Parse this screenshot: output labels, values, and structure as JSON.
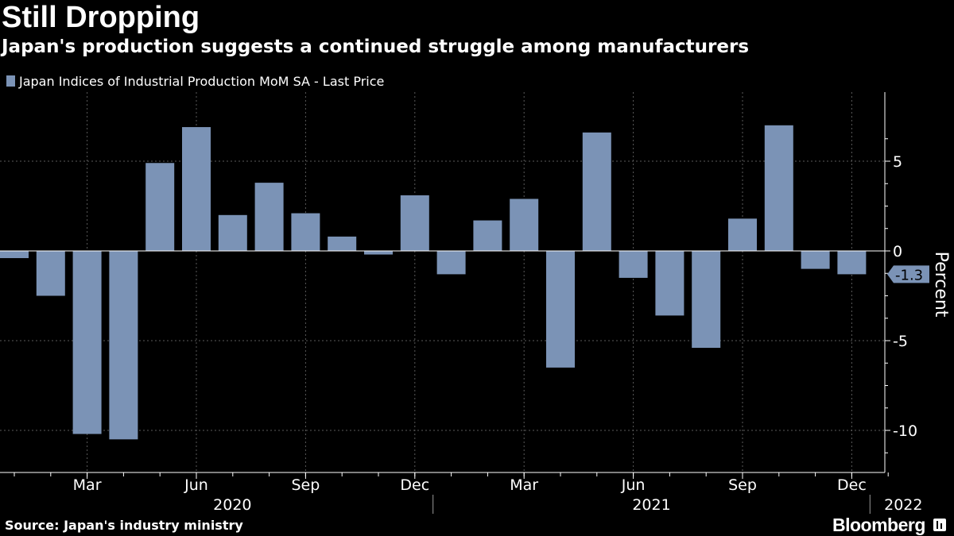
{
  "header": {
    "title": "Still Dropping",
    "subtitle": "Japan's production suggests a continued struggle among manufacturers"
  },
  "footer": {
    "source": "Source: Japan's industry ministry",
    "brand": "Bloomberg"
  },
  "colors": {
    "background": "#000000",
    "bar": "#7b93b6",
    "text": "#ffffff",
    "grid": "#5a5a5a",
    "axis": "#ffffff"
  },
  "chart_data": {
    "type": "bar",
    "title": "Still Dropping",
    "subtitle": "Japan's production suggests a continued struggle among manufacturers",
    "ylabel": "Percent",
    "xlabel": "",
    "ylim": [
      -12,
      8.5
    ],
    "yticks": [
      5,
      0,
      -5,
      -10
    ],
    "ytick_labels": [
      "5",
      "0",
      "-5",
      "-10"
    ],
    "y_axis_position": "right",
    "grid": true,
    "legend_position": "top-left",
    "series": [
      {
        "name": "Japan Indices of Industrial Production MoM SA - Last Price",
        "color": "#7b93b6",
        "categories": [
          "2020-01",
          "2020-02",
          "2020-03",
          "2020-04",
          "2020-05",
          "2020-06",
          "2020-07",
          "2020-08",
          "2020-09",
          "2020-10",
          "2020-11",
          "2020-12",
          "2021-01",
          "2021-02",
          "2021-03",
          "2021-04",
          "2021-05",
          "2021-06",
          "2021-07",
          "2021-08",
          "2021-09",
          "2021-10",
          "2021-11",
          "2021-12",
          "2022-01"
        ],
        "values": [
          -0.4,
          -2.5,
          -10.2,
          -10.5,
          4.9,
          6.9,
          2.0,
          3.8,
          2.1,
          0.8,
          -0.2,
          3.1,
          -1.3,
          1.7,
          2.9,
          -6.5,
          6.6,
          -1.5,
          -3.6,
          -5.4,
          1.8,
          7.0,
          -1.0,
          -1.3,
          null
        ]
      }
    ],
    "x_month_ticks": [
      {
        "label": "Mar",
        "month": "2020-03"
      },
      {
        "label": "Jun",
        "month": "2020-06"
      },
      {
        "label": "Sep",
        "month": "2020-09"
      },
      {
        "label": "Dec",
        "month": "2020-12"
      },
      {
        "label": "Mar",
        "month": "2021-03"
      },
      {
        "label": "Jun",
        "month": "2021-06"
      },
      {
        "label": "Sep",
        "month": "2021-09"
      },
      {
        "label": "Dec",
        "month": "2021-12"
      }
    ],
    "x_year_labels": [
      "2020",
      "2021",
      "2022"
    ],
    "last_value": {
      "label": "-1.3",
      "value": -1.3
    }
  }
}
